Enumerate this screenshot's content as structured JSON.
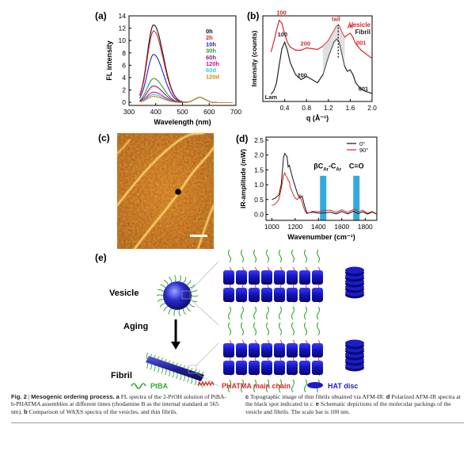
{
  "panels": {
    "a": {
      "label": "(a)",
      "chart_data": {
        "type": "line",
        "xlabel": "Wavelength (nm)",
        "ylabel": "FL intensity",
        "xlim": [
          300,
          700
        ],
        "ylim": [
          -0.5,
          14
        ],
        "xticks": [
          300,
          400,
          500,
          600,
          700
        ],
        "yticks": [
          0,
          2,
          4,
          6,
          8,
          10,
          12,
          14
        ],
        "peak_x": 392,
        "ref_peak_x": 565,
        "series": [
          {
            "name": "0h",
            "color": "#111111",
            "peak": 12.6
          },
          {
            "name": "2h",
            "color": "#d62728",
            "peak": 11.6
          },
          {
            "name": "10h",
            "color": "#1f1fd6",
            "peak": 7.8
          },
          {
            "name": "30h",
            "color": "#2ca02c",
            "peak": 3.9
          },
          {
            "name": "60h",
            "color": "#8b1a8b",
            "peak": 2.7
          },
          {
            "name": "120h",
            "color": "#c71585",
            "peak": 1.7
          },
          {
            "name": "60d",
            "color": "#3fc9e0",
            "peak": 1.3
          },
          {
            "name": "120d",
            "color": "#d08a16",
            "peak": 1.0
          }
        ]
      }
    },
    "b": {
      "label": "(b)",
      "chart_data": {
        "type": "line",
        "xlabel": "q (Å⁻¹)",
        "ylabel": "Intensity (counts)",
        "xlim": [
          0.0,
          2.0
        ],
        "xticks": [
          0.4,
          0.8,
          1.2,
          1.6,
          2.0
        ],
        "series": [
          {
            "name": "Vesicle",
            "color": "#d62728",
            "x": [
              0.15,
              0.2,
              0.25,
              0.3,
              0.35,
              0.4,
              0.45,
              0.5,
              0.6,
              0.7,
              0.8,
              0.9,
              1.0,
              1.1,
              1.2,
              1.3,
              1.35,
              1.4,
              1.45,
              1.5,
              1.55,
              1.6,
              1.65,
              1.7,
              1.8,
              1.9,
              2.0
            ],
            "y": [
              0.58,
              0.7,
              0.85,
              0.97,
              0.93,
              0.8,
              0.7,
              0.64,
              0.6,
              0.6,
              0.63,
              0.62,
              0.61,
              0.65,
              0.72,
              0.84,
              0.9,
              0.9,
              0.82,
              0.76,
              0.79,
              0.81,
              0.76,
              0.68,
              0.6,
              0.55,
              0.5
            ]
          },
          {
            "name": "Fibril",
            "color": "#222222",
            "x": [
              0.15,
              0.2,
              0.25,
              0.3,
              0.35,
              0.4,
              0.45,
              0.5,
              0.6,
              0.7,
              0.8,
              0.9,
              1.0,
              1.1,
              1.2,
              1.3,
              1.35,
              1.4,
              1.45,
              1.5,
              1.55,
              1.6,
              1.65,
              1.7,
              1.8,
              1.9,
              2.0
            ],
            "y": [
              0.06,
              0.1,
              0.2,
              0.42,
              0.62,
              0.7,
              0.6,
              0.45,
              0.3,
              0.24,
              0.28,
              0.24,
              0.2,
              0.3,
              0.52,
              0.7,
              0.74,
              0.7,
              0.55,
              0.4,
              0.34,
              0.36,
              0.3,
              0.2,
              0.12,
              0.09,
              0.07
            ]
          }
        ],
        "annotations": [
          {
            "text": "100",
            "color": "#d62728"
          },
          {
            "text": "100",
            "color": "#222222"
          },
          {
            "text": "200",
            "color": "#d62728"
          },
          {
            "text": "200",
            "color": "#222222"
          },
          {
            "text": "tail",
            "color": "#d62728"
          },
          {
            "text": "Al",
            "color": "#d62728"
          },
          {
            "text": "001",
            "color": "#d62728"
          },
          {
            "text": "001",
            "color": "#222222"
          },
          {
            "text": "Lam",
            "color": "#222222"
          }
        ]
      }
    },
    "c": {
      "label": "(c)"
    },
    "d": {
      "label": "(d)",
      "chart_data": {
        "type": "line",
        "xlabel": "Wavenumber (cm⁻¹)",
        "ylabel": "IR-amplitude (mW)",
        "xlim": [
          950,
          1900
        ],
        "ylim": [
          -0.2,
          2.6
        ],
        "xticks": [
          1000,
          1200,
          1400,
          1600,
          1800
        ],
        "yticks": [
          0.0,
          0.5,
          1.0,
          1.5,
          2.0,
          2.5
        ],
        "series": [
          {
            "name": "0°",
            "color": "#111111",
            "x": [
              1000,
              1030,
              1060,
              1080,
              1100,
              1110,
              1120,
              1130,
              1140,
              1150,
              1160,
              1180,
              1200,
              1220,
              1240,
              1260,
              1280,
              1300,
              1350,
              1400,
              1450,
              1500,
              1550,
              1600,
              1650,
              1700,
              1720,
              1740,
              1780,
              1820,
              1860,
              1900
            ],
            "y": [
              0.5,
              0.55,
              0.65,
              1.0,
              1.9,
              2.05,
              2.0,
              1.95,
              1.6,
              1.65,
              1.5,
              1.2,
              0.95,
              0.7,
              0.55,
              0.62,
              0.3,
              0.08,
              0.05,
              0.05,
              0.06,
              0.05,
              0.05,
              0.06,
              0.05,
              0.08,
              0.1,
              0.06,
              0.05,
              0.05,
              0.04,
              0.04
            ]
          },
          {
            "name": "90°",
            "color": "#d62728",
            "x": [
              1000,
              1030,
              1060,
              1080,
              1100,
              1110,
              1120,
              1130,
              1140,
              1150,
              1160,
              1180,
              1200,
              1220,
              1240,
              1260,
              1280,
              1300,
              1350,
              1400,
              1450,
              1500,
              1550,
              1600,
              1650,
              1700,
              1720,
              1740,
              1780,
              1820,
              1860,
              1900
            ],
            "y": [
              0.3,
              0.35,
              0.5,
              0.85,
              1.3,
              1.4,
              1.3,
              1.25,
              1.15,
              1.1,
              0.9,
              0.7,
              0.55,
              0.5,
              0.65,
              0.4,
              0.15,
              0.06,
              0.08,
              0.1,
              0.14,
              0.12,
              0.1,
              0.12,
              0.1,
              0.14,
              0.2,
              0.12,
              0.1,
              0.08,
              0.06,
              0.05
            ]
          }
        ],
        "bands": [
          {
            "label_main": "βC",
            "sub1": "Ar",
            "mid": "-C",
            "sub2": "Ar",
            "center": 1440
          },
          {
            "label_main": "C=O",
            "center": 1725
          }
        ],
        "band_color": "#33aadd"
      }
    },
    "e": {
      "label": "(e)",
      "labels": {
        "vesicle": "Vesicle",
        "aging": "Aging",
        "fibril": "Fibril"
      },
      "legend": [
        {
          "text": "PtBA",
          "color": "#33aa33",
          "icon": "green-coil-icon"
        },
        {
          "text": "PHATMA main chain",
          "color": "#d62728",
          "icon": "red-spring-icon"
        },
        {
          "text": "HAT disc",
          "color": "#2020c0",
          "icon": "blue-disc-icon"
        }
      ],
      "colors": {
        "disc": "#1c1cc8",
        "chain": "#33aa33",
        "spring": "#d62728"
      }
    }
  },
  "caption": {
    "left": {
      "fig": "Fig. 2",
      "title": "Mesogenic ordering process.",
      "a": "a",
      "a_text": " FL spectra of the 2-PrOH solution of PtBA-b-PHATMA assemblies at different times (rhodamine B as the internal standard at 565 nm).",
      "b": "b",
      "b_text": " Comparison of WAXS spectra of the vesicles, and thin fibrils."
    },
    "right": {
      "c": "c",
      "c_text": " Topographic image of thin fibrils obtained via AFM-IR.",
      "d": "d",
      "d_text": " Polarized AFM-IR spectra at the black spot indicated in c.",
      "e": "e",
      "e_text": " Schematic depictions of the molecular packings of the vesicle and fibrils. The scale bar is 100 nm."
    }
  }
}
